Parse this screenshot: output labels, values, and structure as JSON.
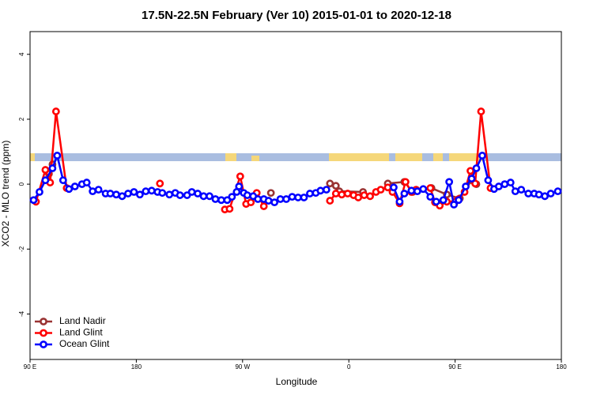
{
  "chart_data": {
    "type": "line",
    "title": "17.5N-22.5N February (Ver 10)   2015-01-01 to 2020-12-18",
    "x_label": "Longitude",
    "y_label": "XCO2 - MLO trend (ppm)",
    "xlim": [
      90,
      540
    ],
    "xticks": [
      {
        "value": 90,
        "label": "90 E"
      },
      180,
      {
        "value": 270,
        "label": "90 W"
      },
      {
        "value": 360,
        "label": "0"
      },
      {
        "value": 450,
        "label": "90 E"
      },
      {
        "value": 540,
        "label": "180"
      }
    ],
    "ylim": [
      -5.4,
      4.7
    ],
    "yticks": [
      -4,
      -2,
      0,
      2,
      4
    ],
    "legend": "bottom-left",
    "series": [
      {
        "name": "Land Nadir",
        "color": "#993333",
        "x": [
          94,
          106,
          109,
          294,
          344,
          349,
          352,
          372,
          393,
          407,
          414,
          430,
          443,
          454,
          464,
          468
        ],
        "values": [
          -0.51,
          0.32,
          0.61,
          -0.27,
          0.02,
          -0.05,
          -0.22,
          -0.24,
          0.02,
          0.07,
          -0.24,
          -0.12,
          -0.32,
          -0.44,
          0.12,
          0
        ]
      },
      {
        "name": "Land Glint",
        "color": "#ff0000",
        "x": [
          95,
          103,
          107,
          112,
          121,
          200,
          255,
          259,
          268,
          273,
          277,
          282,
          288,
          344,
          349,
          354,
          359,
          364,
          368,
          373,
          378,
          383,
          387,
          393,
          397,
          403,
          408,
          413,
          417,
          429,
          433,
          437,
          443,
          450,
          453,
          458,
          463,
          467,
          472,
          480
        ],
        "values": [
          -0.54,
          0.44,
          0.05,
          2.24,
          -0.12,
          0.02,
          -0.78,
          -0.76,
          0.24,
          -0.61,
          -0.56,
          -0.27,
          -0.68,
          -0.51,
          -0.29,
          -0.32,
          -0.29,
          -0.34,
          -0.41,
          -0.34,
          -0.37,
          -0.24,
          -0.17,
          -0.1,
          -0.24,
          -0.59,
          0.07,
          -0.24,
          -0.17,
          -0.12,
          -0.56,
          -0.66,
          -0.54,
          -0.54,
          -0.46,
          -0.24,
          0.41,
          0.02,
          2.24,
          -0.12
        ]
      },
      {
        "name": "Ocean Glint",
        "color": "#0000ff",
        "x": [
          93,
          98,
          103,
          109,
          113,
          118,
          123,
          128,
          134,
          138,
          143,
          148,
          154,
          158,
          163,
          168,
          173,
          178,
          183,
          188,
          193,
          198,
          202,
          208,
          213,
          217,
          223,
          227,
          232,
          237,
          242,
          247,
          252,
          257,
          261,
          265,
          267,
          271,
          274,
          279,
          283,
          288,
          292,
          297,
          302,
          307,
          312,
          317,
          322,
          327,
          332,
          336,
          341,
          398,
          403,
          407,
          413,
          418,
          423,
          429,
          434,
          440,
          445,
          449,
          453,
          459,
          464,
          468,
          473,
          478,
          483,
          487,
          492,
          497,
          501,
          506,
          512,
          517,
          521,
          526,
          531,
          537
        ],
        "values": [
          -0.49,
          -0.24,
          0.12,
          0.49,
          0.88,
          0.12,
          -0.15,
          -0.07,
          0,
          0.05,
          -0.22,
          -0.17,
          -0.29,
          -0.29,
          -0.32,
          -0.37,
          -0.29,
          -0.24,
          -0.32,
          -0.22,
          -0.2,
          -0.24,
          -0.27,
          -0.32,
          -0.27,
          -0.34,
          -0.34,
          -0.24,
          -0.29,
          -0.37,
          -0.37,
          -0.46,
          -0.49,
          -0.49,
          -0.39,
          -0.24,
          -0.07,
          -0.27,
          -0.34,
          -0.37,
          -0.46,
          -0.46,
          -0.51,
          -0.56,
          -0.46,
          -0.46,
          -0.39,
          -0.41,
          -0.41,
          -0.29,
          -0.27,
          -0.2,
          -0.17,
          -0.1,
          -0.54,
          -0.29,
          -0.2,
          -0.22,
          -0.15,
          -0.39,
          -0.54,
          -0.49,
          0.07,
          -0.63,
          -0.49,
          -0.07,
          0.17,
          0.49,
          0.88,
          0.12,
          -0.15,
          -0.07,
          0,
          0.05,
          -0.22,
          -0.17,
          -0.29,
          -0.29,
          -0.32,
          -0.37,
          -0.29,
          -0.22
        ]
      }
    ]
  }
}
